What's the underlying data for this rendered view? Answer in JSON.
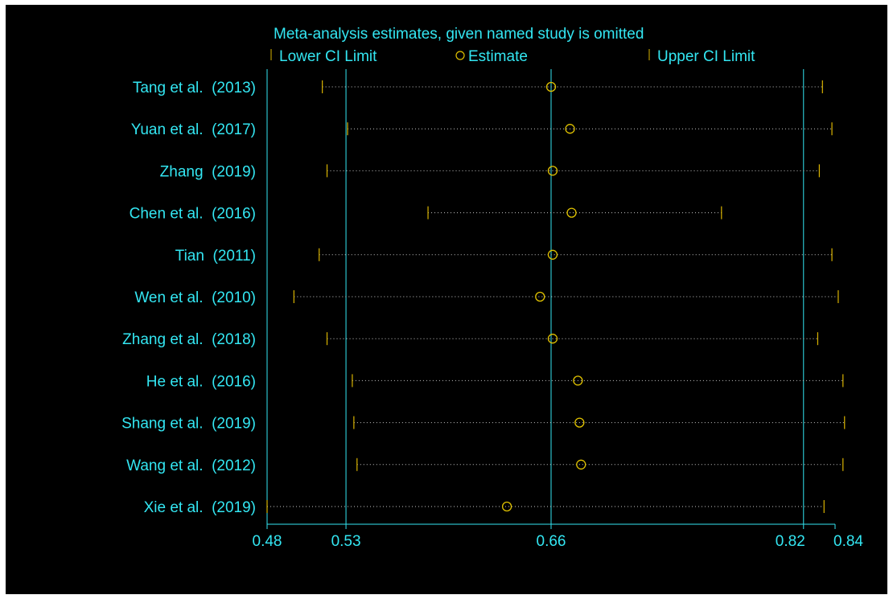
{
  "colors": {
    "background": "#000000",
    "text": "#33E6F2",
    "axis": "#33E6F2",
    "estimate": "#E0C200",
    "ci_limit": "#D9B300",
    "ci_line": "#C9C9C9"
  },
  "chart_data": {
    "type": "scatter",
    "title": "Meta-analysis estimates, given named study is omitted",
    "legend": {
      "placement": "top",
      "items": [
        {
          "label": "Lower CI Limit",
          "marker": "tick"
        },
        {
          "label": "Estimate",
          "marker": "circle"
        },
        {
          "label": "Upper CI Limit",
          "marker": "tick"
        }
      ]
    },
    "studies": [
      {
        "label": "Tang et al.  (2013)",
        "lower": 0.515,
        "estimate": 0.66,
        "upper": 0.832
      },
      {
        "label": "Yuan et al.  (2017)",
        "lower": 0.531,
        "estimate": 0.672,
        "upper": 0.838
      },
      {
        "label": "Zhang  (2019)",
        "lower": 0.518,
        "estimate": 0.661,
        "upper": 0.83
      },
      {
        "label": "Chen et al.  (2016)",
        "lower": 0.582,
        "estimate": 0.673,
        "upper": 0.768
      },
      {
        "label": "Tian  (2011)",
        "lower": 0.513,
        "estimate": 0.661,
        "upper": 0.838
      },
      {
        "label": "Wen et al.  (2010)",
        "lower": 0.497,
        "estimate": 0.653,
        "upper": 0.842
      },
      {
        "label": "Zhang et al.  (2018)",
        "lower": 0.518,
        "estimate": 0.661,
        "upper": 0.829
      },
      {
        "label": "He et al.  (2016)",
        "lower": 0.534,
        "estimate": 0.677,
        "upper": 0.845
      },
      {
        "label": "Shang et al.  (2019)",
        "lower": 0.535,
        "estimate": 0.678,
        "upper": 0.846
      },
      {
        "label": "Wang et al.  (2012)",
        "lower": 0.537,
        "estimate": 0.679,
        "upper": 0.845
      },
      {
        "label": "Xie et al.  (2019)",
        "lower": 0.48,
        "estimate": 0.632,
        "upper": 0.833
      }
    ],
    "xlim": [
      0.48,
      0.84
    ],
    "xticks": [
      {
        "value": 0.48,
        "label": "0.48"
      },
      {
        "value": 0.53,
        "label": "0.53"
      },
      {
        "value": 0.66,
        "label": "0.66"
      },
      {
        "value": 0.82,
        "label": "0.82"
      },
      {
        "value": 0.84,
        "label": "0.84"
      }
    ],
    "reference_lines": [
      0.53,
      0.66,
      0.82
    ],
    "grid": false
  }
}
